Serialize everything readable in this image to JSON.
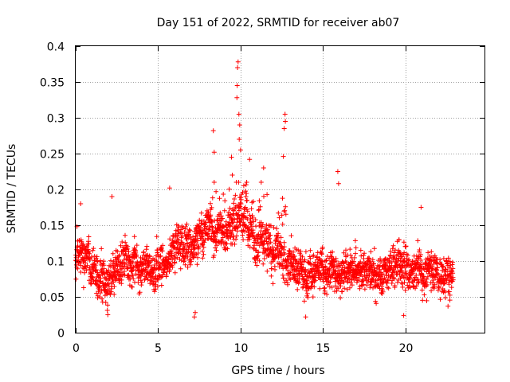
{
  "chart_data": {
    "type": "scatter",
    "title": "Day 151 of 2022, SRMTID for receiver ab07",
    "xlabel": "GPS time / hours",
    "ylabel": "SRMTID / TECUs",
    "xlim": [
      0,
      24.8
    ],
    "ylim": [
      0,
      0.4
    ],
    "xticks": [
      0,
      5,
      10,
      15,
      20
    ],
    "xtick_labels": [
      "0",
      "5",
      "10",
      "15",
      "20"
    ],
    "yticks": [
      0,
      0.05,
      0.1,
      0.15,
      0.2,
      0.25,
      0.3,
      0.35,
      0.4
    ],
    "ytick_labels": [
      "0",
      "0.05",
      "0.1",
      "0.15",
      "0.2",
      "0.25",
      "0.3",
      "0.35",
      "0.4"
    ],
    "grid": true,
    "marker": "+",
    "color": "#ff0000",
    "x_range": [
      0,
      22.9
    ],
    "baseline": [
      [
        0,
        0.105
      ],
      [
        1,
        0.095
      ],
      [
        2,
        0.075
      ],
      [
        3,
        0.1
      ],
      [
        4,
        0.09
      ],
      [
        5,
        0.095
      ],
      [
        6,
        0.11
      ],
      [
        7,
        0.12
      ],
      [
        8,
        0.14
      ],
      [
        9,
        0.14
      ],
      [
        9.8,
        0.16
      ],
      [
        10.5,
        0.14
      ],
      [
        11,
        0.12
      ],
      [
        12,
        0.12
      ],
      [
        13,
        0.1
      ],
      [
        14,
        0.09
      ],
      [
        15,
        0.09
      ],
      [
        16,
        0.085
      ],
      [
        17,
        0.085
      ],
      [
        18,
        0.08
      ],
      [
        19,
        0.085
      ],
      [
        20,
        0.09
      ],
      [
        21,
        0.085
      ],
      [
        22,
        0.08
      ],
      [
        23,
        0.08
      ]
    ],
    "spread": 0.035,
    "point_count": 2400,
    "notable_points": [
      {
        "x": 9.85,
        "y": 0.378
      },
      {
        "x": 9.82,
        "y": 0.37
      },
      {
        "x": 9.8,
        "y": 0.345
      },
      {
        "x": 9.78,
        "y": 0.328
      },
      {
        "x": 9.9,
        "y": 0.305
      },
      {
        "x": 9.95,
        "y": 0.29
      },
      {
        "x": 9.92,
        "y": 0.27
      },
      {
        "x": 10.0,
        "y": 0.255
      },
      {
        "x": 8.35,
        "y": 0.282
      },
      {
        "x": 8.4,
        "y": 0.252
      },
      {
        "x": 12.7,
        "y": 0.305
      },
      {
        "x": 12.72,
        "y": 0.295
      },
      {
        "x": 12.65,
        "y": 0.285
      },
      {
        "x": 12.6,
        "y": 0.246
      },
      {
        "x": 15.9,
        "y": 0.225
      },
      {
        "x": 15.95,
        "y": 0.208
      },
      {
        "x": 11.4,
        "y": 0.23
      },
      {
        "x": 10.55,
        "y": 0.242
      },
      {
        "x": 9.45,
        "y": 0.245
      },
      {
        "x": 9.5,
        "y": 0.22
      },
      {
        "x": 7.2,
        "y": 0.022
      },
      {
        "x": 7.25,
        "y": 0.028
      },
      {
        "x": 1.95,
        "y": 0.025
      },
      {
        "x": 13.95,
        "y": 0.022
      },
      {
        "x": 19.9,
        "y": 0.024
      },
      {
        "x": 2.2,
        "y": 0.19
      },
      {
        "x": 5.7,
        "y": 0.202
      },
      {
        "x": 20.95,
        "y": 0.175
      },
      {
        "x": 0.3,
        "y": 0.18
      }
    ]
  }
}
